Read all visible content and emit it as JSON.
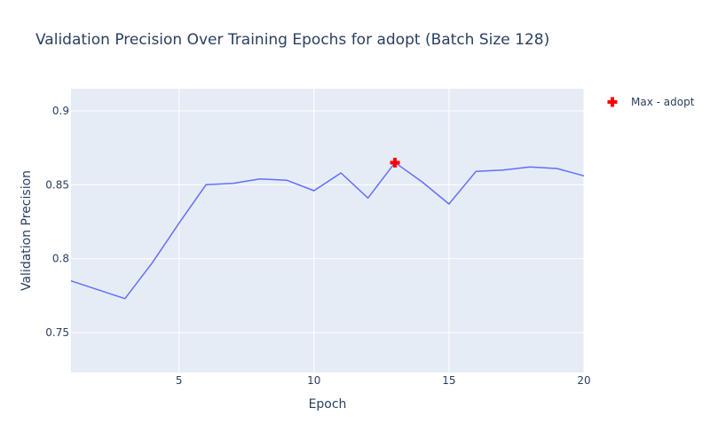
{
  "chart_data": {
    "type": "line",
    "title": "Validation Precision Over Training Epochs for adopt (Batch Size 128)",
    "xlabel": "Epoch",
    "ylabel": "Validation Precision",
    "xlim": [
      1,
      20
    ],
    "ylim": [
      0.723,
      0.915
    ],
    "xticks": [
      5,
      10,
      15,
      20
    ],
    "xtick_labels": [
      "5",
      "10",
      "15",
      "20"
    ],
    "yticks": [
      0.75,
      0.8,
      0.85,
      0.9
    ],
    "ytick_labels": [
      "0.75",
      "0.8",
      "0.85",
      "0.9"
    ],
    "grid": true,
    "legend_position": "top-right",
    "series": [
      {
        "color": "#636efa",
        "x": [
          1,
          2,
          3,
          4,
          5,
          6,
          7,
          8,
          9,
          10,
          11,
          12,
          13,
          14,
          15,
          16,
          17,
          18,
          19,
          20
        ],
        "y": [
          0.785,
          0.779,
          0.773,
          0.797,
          0.824,
          0.85,
          0.851,
          0.854,
          0.853,
          0.846,
          0.858,
          0.841,
          0.865,
          0.852,
          0.837,
          0.859,
          0.86,
          0.862,
          0.861,
          0.856
        ]
      }
    ],
    "markers": [
      {
        "name": "Max - adopt",
        "symbol": "cross",
        "color": "#ff0000",
        "x": 13,
        "y": 0.865
      }
    ]
  },
  "colors": {
    "plot_background": "#e5ecf6",
    "grid": "#ffffff",
    "text": "#2a3f5f"
  }
}
